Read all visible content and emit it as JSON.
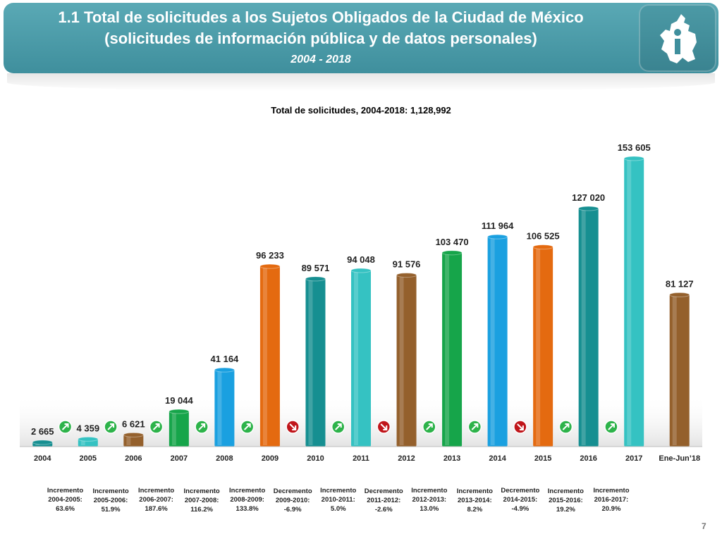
{
  "header": {
    "title_line1": "1.1 Total de solicitudes a los Sujetos Obligados de la Ciudad de México",
    "title_line2": "(solicitudes de información pública y de datos personales)",
    "period": "2004 - 2018",
    "logo_icon": "cdmx-info-logo-icon"
  },
  "chart_data": {
    "type": "bar",
    "title": "Total de solicitudes, 2004-2018: 1,128,992",
    "xlabel": "",
    "ylabel": "",
    "categories": [
      "2004",
      "2005",
      "2006",
      "2007",
      "2008",
      "2009",
      "2010",
      "2011",
      "2012",
      "2013",
      "2014",
      "2015",
      "2016",
      "2017",
      "Ene-Jun’18"
    ],
    "values": [
      2665,
      4359,
      6621,
      19044,
      41164,
      96233,
      89571,
      94048,
      91576,
      103470,
      111964,
      106525,
      127020,
      153605,
      81127
    ],
    "value_labels": [
      "2 665",
      "4 359",
      "6 621",
      "19 044",
      "41 164",
      "96 233",
      "89 571",
      "94 048",
      "91 576",
      "103 470",
      "111 964",
      "106 525",
      "127 020",
      "153 605",
      "81 127"
    ],
    "colors": [
      "#168f91",
      "#35c2c2",
      "#94602c",
      "#16a54a",
      "#1aa0e0",
      "#e46a10",
      "#168f91",
      "#35c2c2",
      "#94602c",
      "#16a54a",
      "#1aa0e0",
      "#e46a10",
      "#168f91",
      "#35c2c2",
      "#94602c"
    ],
    "ylim": [
      0,
      160000
    ],
    "grid": false,
    "changes": [
      {
        "kind": "Incremento",
        "period": "2004-2005:",
        "pct": "63.6%",
        "direction": "up"
      },
      {
        "kind": "Incremento",
        "period": "2005-2006:",
        "pct": "51.9%",
        "direction": "up"
      },
      {
        "kind": "Incremento",
        "period": "2006-2007:",
        "pct": "187.6%",
        "direction": "up"
      },
      {
        "kind": "Incremento",
        "period": "2007-2008:",
        "pct": "116.2%",
        "direction": "up"
      },
      {
        "kind": "Incremento",
        "period": "2008-2009:",
        "pct": "133.8%",
        "direction": "up"
      },
      {
        "kind": "Decremento",
        "period": "2009-2010:",
        "pct": "-6.9%",
        "direction": "down"
      },
      {
        "kind": "Incremento",
        "period": "2010-2011:",
        "pct": "5.0%",
        "direction": "up"
      },
      {
        "kind": "Decremento",
        "period": "2011-2012:",
        "pct": "-2.6%",
        "direction": "down"
      },
      {
        "kind": "Incremento",
        "period": "2012-2013:",
        "pct": "13.0%",
        "direction": "up"
      },
      {
        "kind": "Incremento",
        "period": "2013-2014:",
        "pct": "8.2%",
        "direction": "up"
      },
      {
        "kind": "Decremento",
        "period": "2014-2015:",
        "pct": "-4.9%",
        "direction": "down"
      },
      {
        "kind": "Incremento",
        "period": "2015-2016:",
        "pct": "19.2%",
        "direction": "up"
      },
      {
        "kind": "Incremento",
        "period": "2016-2017:",
        "pct": "20.9%",
        "direction": "up"
      }
    ],
    "up_color": "#2db34a",
    "down_color": "#c0161b"
  },
  "footer": {
    "page_number": "7"
  }
}
